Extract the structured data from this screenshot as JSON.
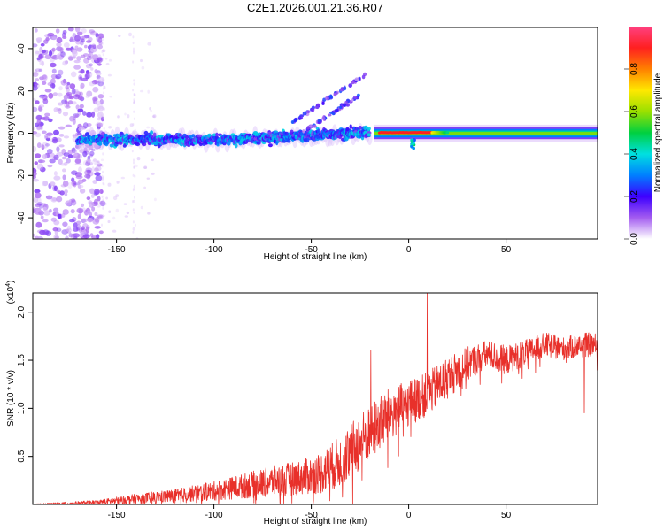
{
  "title": "C2E1.2026.001.21.36.R07",
  "chart_data": [
    {
      "type": "heatmap",
      "title": "C2E1.2026.001.21.36.R07",
      "xlabel": "Height of straight line (km)",
      "ylabel": "Frequency (Hz)",
      "xlim": [
        -193,
        97
      ],
      "ylim": [
        -50,
        50
      ],
      "x_ticks": [
        -150,
        -100,
        -50,
        0,
        50
      ],
      "y_ticks": [
        -40,
        -20,
        0,
        20,
        40
      ],
      "colorbar": {
        "label": "Normalized spectral amplitude",
        "range": [
          0,
          1
        ],
        "ticks": [
          "0.0",
          "0.2",
          "0.4",
          "0.6",
          "0.8"
        ],
        "tick_values": [
          0,
          0.2,
          0.4,
          0.6,
          0.8
        ],
        "colors": [
          "#ffffff",
          "#a35cf0",
          "#3d00ff",
          "#0080ff",
          "#00e0e0",
          "#00d040",
          "#9ae000",
          "#ffe800",
          "#ff8000",
          "#ff2020",
          "#ff4080"
        ]
      },
      "ridge": {
        "description_units": "x in km, frequency in Hz",
        "noise_region_x": [
          -193,
          -165
        ],
        "band_start_x": -170,
        "wide_band_end_x": -20,
        "strong_line_x": [
          -18,
          97
        ],
        "offshoot_lines": [
          {
            "x": [
              -60,
              -22
            ],
            "freq": [
              5,
              28
            ]
          },
          {
            "x": [
              -55,
              -25
            ],
            "freq": [
              0,
              18
            ]
          }
        ],
        "notch_x": 2
      }
    },
    {
      "type": "line",
      "xlabel": "Height of straight line (km)",
      "ylabel": "SNR (10 * v/v)",
      "y_scale_label": "(x10",
      "y_scale_exp": "4",
      "xlim": [
        -193,
        97
      ],
      "ylim": [
        0,
        22000
      ],
      "x_ticks": [
        -150,
        -100,
        -50,
        0,
        50
      ],
      "y_ticks": [
        5000,
        10000,
        15000,
        20000
      ],
      "y_tick_labels": [
        "0.5",
        "1.0",
        "1.5",
        "2.0"
      ],
      "series": [
        {
          "name": "SNR",
          "color": "#e8302a",
          "envelope_x": [
            -193,
            -160,
            -140,
            -120,
            -100,
            -85,
            -70,
            -55,
            -45,
            -35,
            -25,
            -20,
            -10,
            0,
            10,
            20,
            30,
            40,
            50,
            60,
            70,
            80,
            90,
            97
          ],
          "envelope_mid": [
            0,
            200,
            600,
            900,
            1400,
            1900,
            2400,
            2800,
            3300,
            4500,
            6500,
            7500,
            9300,
            10500,
            11500,
            13200,
            14600,
            15600,
            15000,
            15800,
            16600,
            16200,
            16600,
            16600
          ],
          "envelope_amp": [
            50,
            250,
            500,
            700,
            1000,
            1300,
            1600,
            1800,
            2200,
            2700,
            3000,
            3000,
            2800,
            2400,
            2300,
            2200,
            1800,
            1500,
            1500,
            1300,
            1300,
            1200,
            1300,
            1200
          ],
          "spikes": [
            {
              "x": 9.5,
              "y": 22000
            },
            {
              "x": -19.5,
              "y": 16000
            },
            {
              "x": 1,
              "y": 12800
            },
            {
              "x": 90,
              "y": 17300
            }
          ]
        }
      ]
    }
  ]
}
